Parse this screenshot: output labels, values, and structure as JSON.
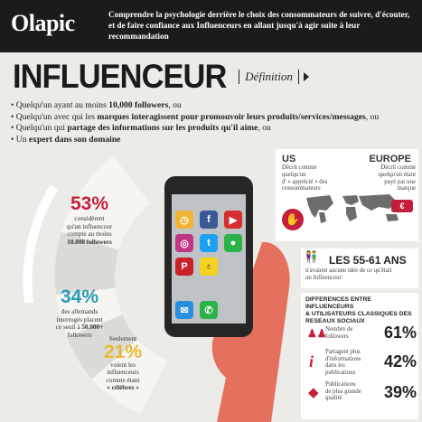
{
  "header": {
    "logo": "Olapic",
    "line1": "Comprendre la psychologie derrière le choix des consommateurs de suivre, d'écouter,",
    "line2": "et de faire confiance aux Influenceurs en allant jusqu'à agir suite à leur recommandation"
  },
  "title": "INFLUENCEUR",
  "subtitle": "Définition",
  "bullets": [
    {
      "pre": "Quelqu'un ayant au moins ",
      "bold": "10,000 followers",
      "post": ", ou"
    },
    {
      "pre": "Quelqu'un avec qui les ",
      "bold": "marques interagissent pour promouvoir leurs produits/services/messages",
      "post": ", ou"
    },
    {
      "pre": "Quelqu'un qui ",
      "bold": "partage des informations sur les produits qu'il aime",
      "post": ", ou"
    },
    {
      "pre": "Un ",
      "bold": "expert dans son domaine",
      "post": ""
    }
  ],
  "stats": [
    {
      "pct": "53%",
      "color": "#c41e3a",
      "lines": [
        "considèrent",
        "qu'un influenceur",
        "compte au moins"
      ],
      "bold": "10.000 followers"
    },
    {
      "pct": "34%",
      "color": "#2a9cb8",
      "lines": [
        "des allemands",
        "interrogés placent",
        "ce seuil à"
      ],
      "bold": "50.000+",
      "after": "followers"
    },
    {
      "pct": "21%",
      "color": "#e8b930",
      "top": "Seulement",
      "lines": [
        "voient les",
        "influenceurs",
        "comme étant"
      ],
      "bold": "« célèbres »"
    }
  ],
  "us": {
    "title": "US",
    "lines": [
      "Décrit comme",
      "quelqu'un",
      "d' « apprécié » des",
      "consommateurs"
    ]
  },
  "europe": {
    "title": "EUROPE",
    "lines": [
      "Décrit comme",
      "quelqu'un étant",
      "payé par une",
      "marque"
    ]
  },
  "age": {
    "title": "LES 55-61 ANS",
    "lines": [
      "n'avaient aucune idée de ce qu'était",
      "un Influenceur"
    ]
  },
  "diff": {
    "title": [
      "DIFFERENCES ENTRE INFLUENCEURS",
      "& UTILISATEURS CLASSIQUES DES",
      "RESEAUX SOCIAUX"
    ],
    "rows": [
      {
        "label": [
          "Nombre de",
          "followers"
        ],
        "value": "61%",
        "icon": "people-icon"
      },
      {
        "label": [
          "Partagent plus",
          "d'informations",
          "dans les",
          "publications"
        ],
        "value": "42%",
        "icon": "info-icon"
      },
      {
        "label": [
          "Publications",
          "de plus grande",
          "qualité"
        ],
        "value": "39%",
        "icon": "diamond-icon"
      }
    ]
  },
  "colors": {
    "red": "#c41e3a",
    "blue": "#2a9cb8",
    "yellow": "#e8b930",
    "dark": "#1b1b1b"
  }
}
